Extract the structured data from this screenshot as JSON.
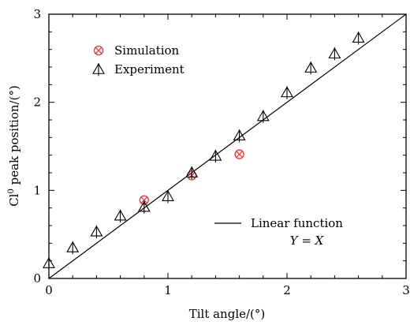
{
  "chart_data": {
    "type": "scatter",
    "xlabel": "Tilt angle/(°)",
    "ylabel_main": "Cl",
    "ylabel_sup": "0",
    "ylabel_rest": " peak position/(°)",
    "xlim": [
      0,
      3
    ],
    "ylim": [
      0,
      3
    ],
    "xticks": [
      0,
      1,
      2,
      3
    ],
    "yticks": [
      0,
      1,
      2,
      3
    ],
    "xtick_labels": [
      "0",
      "1",
      "2",
      "3"
    ],
    "ytick_labels": [
      "0",
      "1",
      "2",
      "3"
    ],
    "grid": false,
    "legend": {
      "position": "top-left",
      "entries": [
        {
          "label": "Simulation",
          "marker": "circle-x",
          "color": "#e8343a"
        },
        {
          "label": "Experiment",
          "marker": "triangle-cross",
          "color": "#000000"
        }
      ]
    },
    "series": [
      {
        "name": "Simulation",
        "marker": "circle-x",
        "color": "#e8343a",
        "x": [
          0.8,
          1.2,
          1.6
        ],
        "y": [
          0.89,
          1.17,
          1.41
        ]
      },
      {
        "name": "Experiment",
        "marker": "triangle-cross",
        "color": "#000000",
        "x": [
          0.0,
          0.2,
          0.4,
          0.6,
          0.8,
          1.0,
          1.2,
          1.4,
          1.6,
          1.8,
          2.0,
          2.2,
          2.4,
          2.6
        ],
        "y": [
          0.17,
          0.35,
          0.53,
          0.71,
          0.81,
          0.93,
          1.2,
          1.39,
          1.62,
          1.84,
          2.11,
          2.39,
          2.55,
          2.73
        ]
      }
    ],
    "line": {
      "x": [
        0,
        3
      ],
      "y": [
        0,
        3
      ],
      "color": "#000000"
    },
    "annotation": {
      "line1": "Linear function",
      "line2": "Y = X"
    }
  }
}
